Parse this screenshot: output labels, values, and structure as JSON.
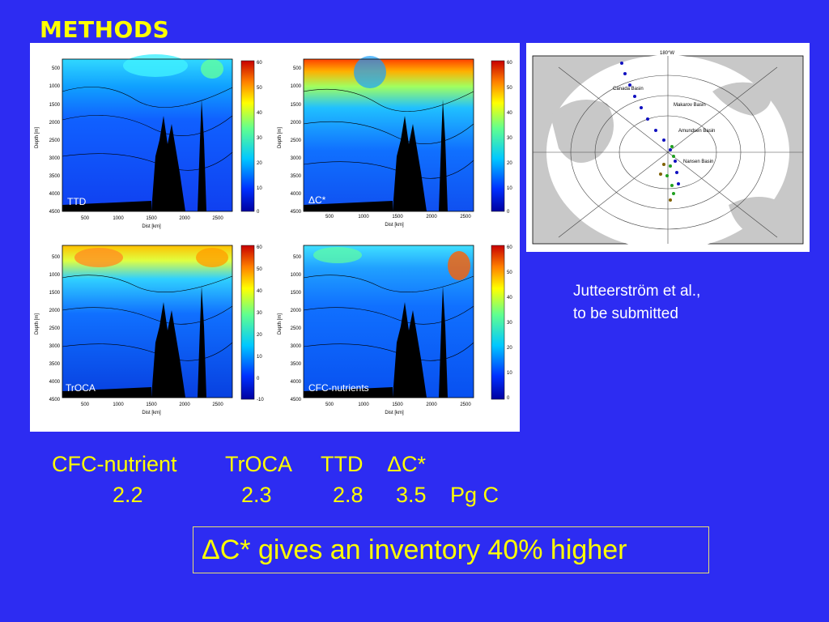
{
  "slide": {
    "title": "METHODS",
    "panels": [
      {
        "label": "TTD",
        "colorbar_ticks": [
          "60",
          "50",
          "40",
          "30",
          "20",
          "10",
          "0"
        ]
      },
      {
        "label": "ΔC*",
        "colorbar_ticks": [
          "60",
          "50",
          "40",
          "30",
          "20",
          "10",
          "0"
        ]
      },
      {
        "label": "TrOCA",
        "colorbar_ticks": [
          "60",
          "50",
          "40",
          "30",
          "20",
          "10",
          "0",
          "-10"
        ]
      },
      {
        "label": "CFC-nutrients",
        "colorbar_ticks": [
          "60",
          "50",
          "40",
          "30",
          "20",
          "10",
          "0"
        ]
      }
    ],
    "depth_ticks": [
      "500",
      "1000",
      "1500",
      "2000",
      "2500",
      "3000",
      "3500",
      "4000",
      "4500"
    ],
    "dist_ticks": [
      "500",
      "1000",
      "1500",
      "2000",
      "2500"
    ],
    "ylabel": "Depth [m]",
    "xlabel_bottom": "Dist [km]",
    "map_labels": [
      "Canada Basin",
      "Makarov Basin",
      "Amundsen Basin",
      "Nansen Basin",
      "180°W"
    ],
    "citation_line1": "Jutteerström et al.,",
    "citation_line2": "to be submitted",
    "methods_row": [
      "CFC-nutrient",
      "TrOCA",
      "TTD",
      "ΔC*"
    ],
    "values_row": [
      "2.2",
      "2.3",
      "2.8",
      "3.5",
      "Pg C"
    ],
    "callout": "ΔC* gives an inventory 40% higher"
  }
}
